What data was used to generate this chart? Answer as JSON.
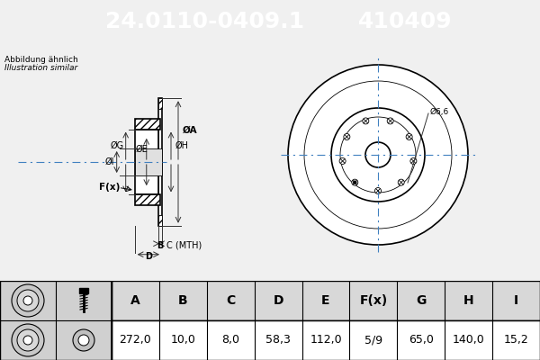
{
  "title1": "24.0110-0409.1",
  "title2": "410409",
  "subtitle1": "Abbildung ähnlich",
  "subtitle2": "Illustration similar",
  "header_bg": "#2060a0",
  "header_text_color": "#ffffff",
  "table_headers": [
    "A",
    "B",
    "C",
    "D",
    "E",
    "F(x)",
    "G",
    "H",
    "I"
  ],
  "table_values": [
    "272,0",
    "10,0",
    "8,0",
    "58,3",
    "112,0",
    "5/9",
    "65,0",
    "140,0",
    "15,2"
  ],
  "bg_color": "#f0f0f0",
  "drawing_bg": "#e8e8e0",
  "dim_label_6_6": "Ø6,6",
  "bolt_count": 9
}
